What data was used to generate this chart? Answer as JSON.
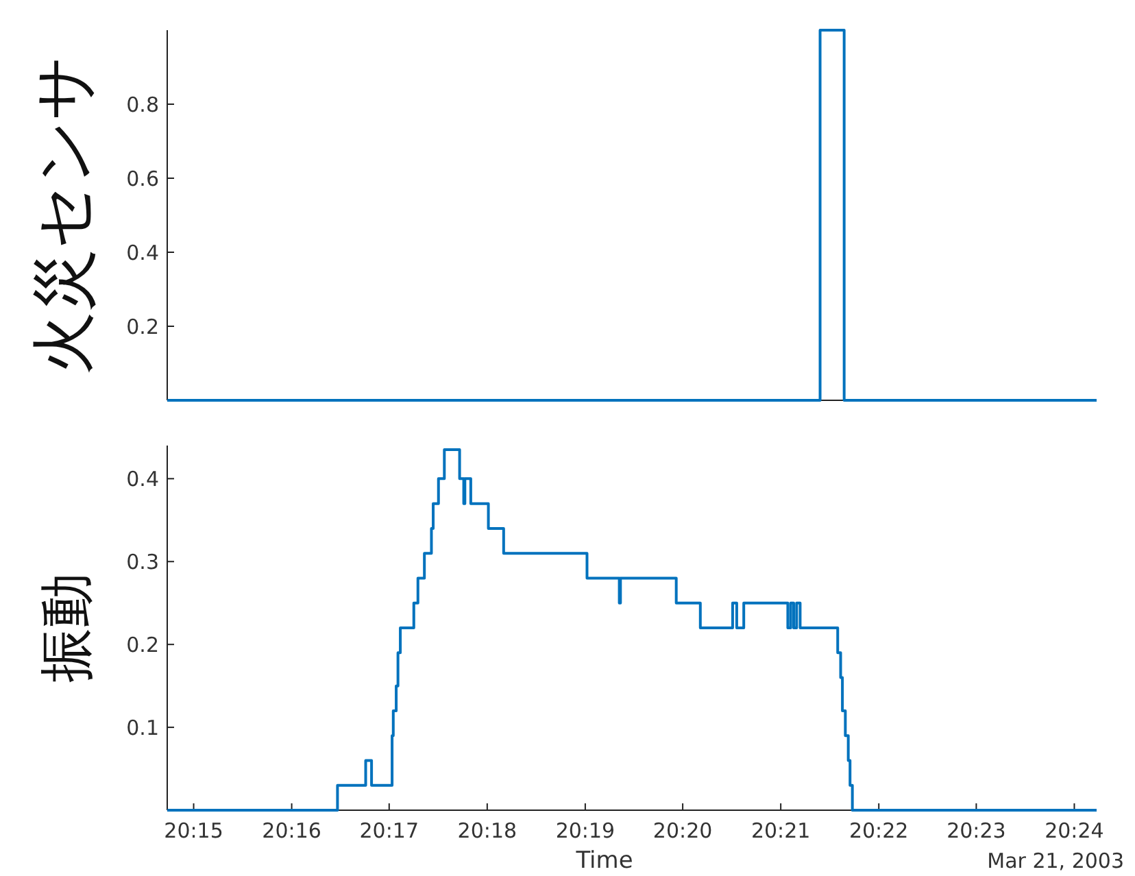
{
  "chart_data": [
    {
      "type": "step",
      "ylabel": "火災センサ",
      "tick_labels": "y",
      "xlim": [
        20.2455,
        20.4038
      ],
      "ylim": [
        0,
        1
      ],
      "yticks": [
        0.2,
        0.4,
        0.6,
        0.8
      ],
      "x": [
        20.2455,
        20.3567,
        20.3608,
        20.4038
      ],
      "series": [
        {
          "color": "#0072bd",
          "values": [
            0,
            1,
            0,
            0
          ]
        }
      ]
    },
    {
      "type": "step",
      "ylabel": "振動",
      "xlabel": "Time",
      "annotations": [
        "Mar 21, 2003"
      ],
      "xlim": [
        20.2455,
        20.4038
      ],
      "ylim": [
        0,
        0.44
      ],
      "yticks": [
        0.1,
        0.2,
        0.3,
        0.4
      ],
      "xticks": [
        {
          "value": 20.25,
          "label": "20:15"
        },
        {
          "value": 20.2667,
          "label": "20:16"
        },
        {
          "value": 20.2833,
          "label": "20:17"
        },
        {
          "value": 20.3,
          "label": "20:18"
        },
        {
          "value": 20.3167,
          "label": "20:19"
        },
        {
          "value": 20.3333,
          "label": "20:20"
        },
        {
          "value": 20.35,
          "label": "20:21"
        },
        {
          "value": 20.3667,
          "label": "20:22"
        },
        {
          "value": 20.3833,
          "label": "20:23"
        },
        {
          "value": 20.4,
          "label": "20:24"
        }
      ],
      "x": [
        20.2455,
        20.2745,
        20.2793,
        20.2803,
        20.2838,
        20.284,
        20.2845,
        20.2848,
        20.2852,
        20.2875,
        20.2882,
        20.2893,
        20.2905,
        20.2908,
        20.2917,
        20.2927,
        20.2953,
        20.296,
        20.2962,
        20.2972,
        20.3002,
        20.3028,
        20.317,
        20.3225,
        20.3227,
        20.3322,
        20.3363,
        20.3418,
        20.3425,
        20.3437,
        20.3512,
        20.3517,
        20.3522,
        20.3527,
        20.3533,
        20.3597,
        20.3602,
        20.3605,
        20.361,
        20.3615,
        20.3618,
        20.3622,
        20.4038
      ],
      "series": [
        {
          "color": "#0072bd",
          "values": [
            0,
            0.03,
            0.06,
            0.03,
            0.09,
            0.12,
            0.15,
            0.19,
            0.22,
            0.25,
            0.28,
            0.31,
            0.34,
            0.37,
            0.4,
            0.435,
            0.4,
            0.37,
            0.4,
            0.37,
            0.34,
            0.31,
            0.28,
            0.25,
            0.28,
            0.25,
            0.22,
            0.25,
            0.22,
            0.25,
            0.22,
            0.25,
            0.22,
            0.25,
            0.22,
            0.19,
            0.16,
            0.12,
            0.09,
            0.06,
            0.03,
            0,
            0
          ]
        }
      ]
    }
  ]
}
